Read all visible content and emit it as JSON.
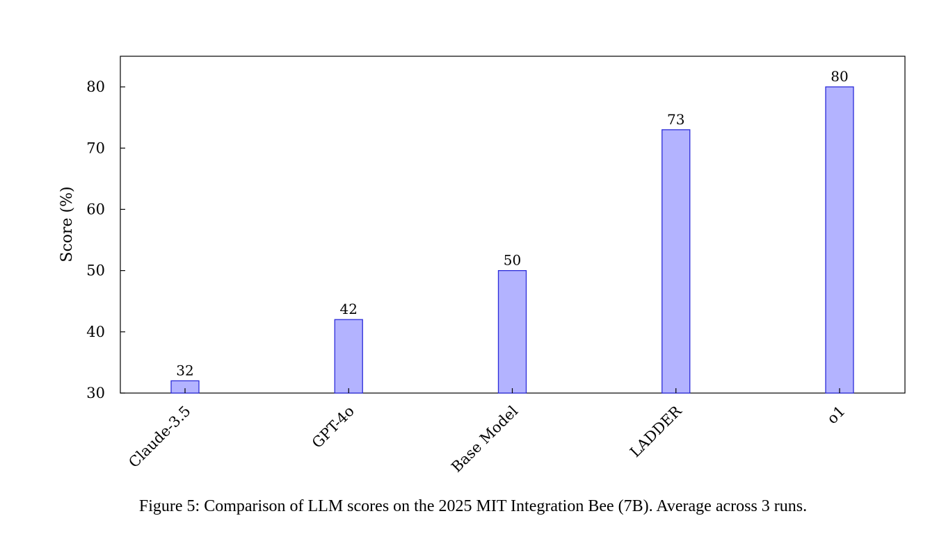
{
  "caption": "Figure 5: Comparison of LLM scores on the 2025 MIT Integration Bee (7B). Average across 3 runs.",
  "chart_data": {
    "type": "bar",
    "categories": [
      "Claude-3.5",
      "GPT-4o",
      "Base Model",
      "LADDER",
      "o1"
    ],
    "values": [
      32,
      42,
      50,
      73,
      80
    ],
    "data_labels": [
      "32",
      "42",
      "50",
      "73",
      "80"
    ],
    "title": "",
    "xlabel": "",
    "ylabel": "Score (%)",
    "ylim": [
      30,
      85
    ],
    "yticks": [
      30,
      40,
      50,
      60,
      70,
      80
    ],
    "ytick_labels": [
      "30",
      "40",
      "50",
      "60",
      "70",
      "80"
    ],
    "grid": false,
    "legend": "none",
    "bar_fill": "#b3b3ff",
    "bar_stroke": "#2b2bd9"
  }
}
